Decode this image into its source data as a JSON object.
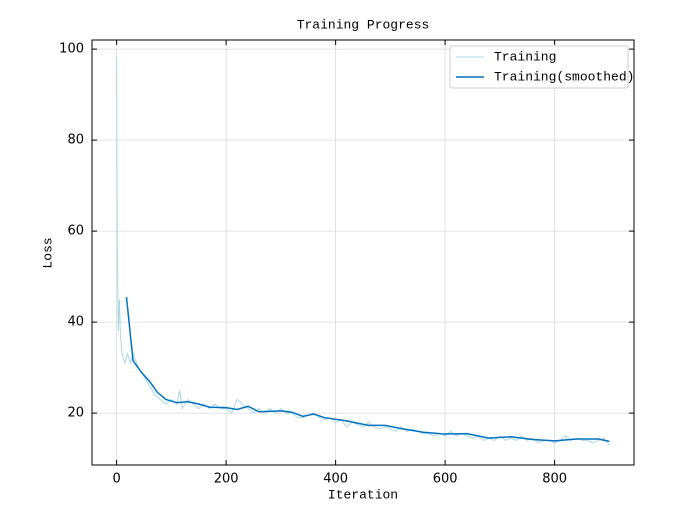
{
  "chart_data": {
    "type": "line",
    "title": "Training Progress",
    "x_label": "Iteration",
    "y_label": "Loss",
    "xlim": [
      -45,
      945
    ],
    "ylim": [
      8.6,
      102
    ],
    "xticks": [
      0,
      200,
      400,
      600,
      800
    ],
    "yticks": [
      20,
      40,
      60,
      80,
      100
    ],
    "grid": true,
    "legend": "upper right",
    "series": [
      {
        "name": "Training",
        "color": "#a8d8e6",
        "x": [
          0,
          1,
          2,
          3,
          5,
          7,
          10,
          15,
          20,
          25,
          30,
          40,
          50,
          60,
          70,
          80,
          90,
          100,
          110,
          115,
          120,
          130,
          140,
          150,
          160,
          170,
          180,
          190,
          200,
          210,
          220,
          230,
          240,
          250,
          260,
          270,
          280,
          290,
          300,
          310,
          320,
          330,
          340,
          350,
          360,
          370,
          380,
          390,
          400,
          410,
          420,
          430,
          440,
          450,
          460,
          470,
          480,
          490,
          500,
          510,
          520,
          530,
          540,
          550,
          560,
          570,
          580,
          590,
          600,
          610,
          620,
          630,
          640,
          650,
          660,
          670,
          680,
          690,
          700,
          710,
          720,
          730,
          740,
          750,
          760,
          770,
          780,
          790,
          800,
          810,
          820,
          830,
          840,
          850,
          860,
          870,
          880,
          890,
          900
        ],
        "values": [
          98,
          60,
          48,
          38,
          45,
          37,
          33,
          31,
          33,
          31,
          33,
          30,
          28,
          26,
          24,
          23,
          22,
          23,
          22,
          25,
          21,
          23,
          22,
          21,
          22,
          21,
          22,
          21,
          21,
          20,
          23,
          22,
          21,
          20,
          21,
          20,
          21,
          20,
          21,
          20,
          20,
          19,
          19,
          19.5,
          20,
          19,
          18.5,
          19,
          18,
          18.5,
          17,
          18,
          17.5,
          17,
          18,
          17,
          16.5,
          17,
          16.5,
          16,
          17,
          16,
          16.5,
          16,
          15.5,
          15.5,
          15,
          15.5,
          15,
          16,
          15,
          15.5,
          15,
          14.5,
          15,
          14,
          14.5,
          14,
          15,
          14,
          14.5,
          14,
          15,
          14,
          14.5,
          13.5,
          14,
          14,
          13.5,
          14,
          15,
          14,
          14.5,
          14,
          14,
          13.5,
          14,
          14.5,
          13
        ]
      },
      {
        "name": "Training(smoothed)",
        "color": "#0072bd",
        "x": [
          18,
          30,
          45,
          60,
          75,
          90,
          110,
          130,
          150,
          170,
          200,
          220,
          240,
          260,
          300,
          320,
          340,
          360,
          380,
          420,
          460,
          490,
          520,
          560,
          600,
          640,
          680,
          720,
          760,
          800,
          840,
          880,
          900
        ],
        "values": [
          45.5,
          31.5,
          29,
          27,
          24.5,
          23,
          22.3,
          22.5,
          22,
          21.3,
          21.2,
          20.8,
          21.5,
          20.3,
          20.5,
          20.2,
          19.3,
          19.8,
          19,
          18.3,
          17.3,
          17.3,
          16.6,
          15.8,
          15.4,
          15.5,
          14.5,
          14.8,
          14.2,
          13.9,
          14.3,
          14.3,
          13.8
        ]
      }
    ]
  }
}
